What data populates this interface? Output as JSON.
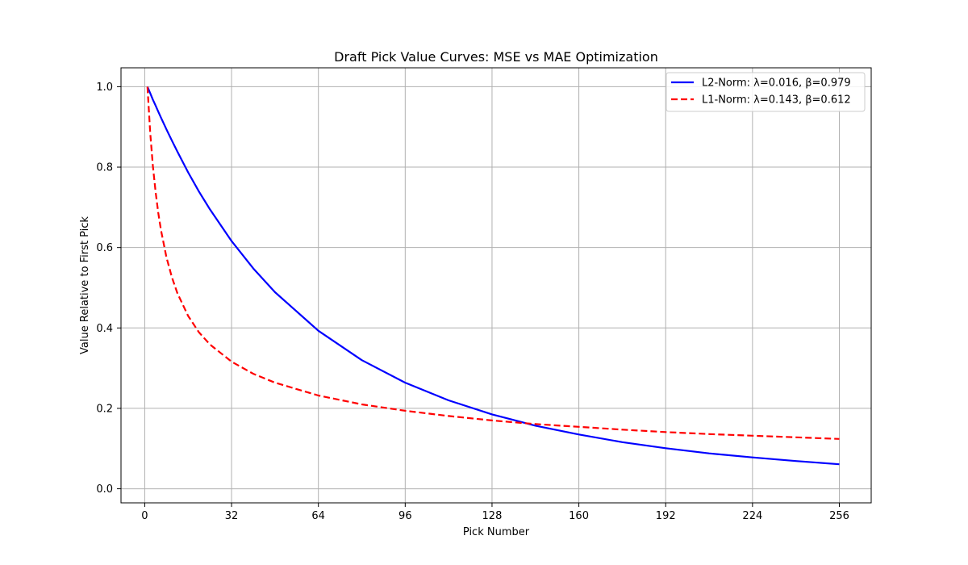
{
  "chart_data": {
    "type": "line",
    "title": "Draft Pick Value Curves: MSE vs MAE Optimization",
    "xlabel": "Pick Number",
    "ylabel": "Value Relative to First Pick",
    "xlim": [
      -8.75,
      267.75
    ],
    "ylim": [
      -0.035,
      1.047
    ],
    "xticks": [
      0,
      32,
      64,
      96,
      128,
      160,
      192,
      224,
      256
    ],
    "xtick_labels": [
      "0",
      "32",
      "64",
      "96",
      "128",
      "160",
      "192",
      "224",
      "256"
    ],
    "yticks": [
      0.0,
      0.2,
      0.4,
      0.6,
      0.8,
      1.0
    ],
    "ytick_labels": [
      "0.0",
      "0.2",
      "0.4",
      "0.6",
      "0.8",
      "1.0"
    ],
    "grid": true,
    "legend_position": "top-right",
    "x": [
      1,
      2,
      3,
      4,
      5,
      6,
      8,
      10,
      12,
      16,
      20,
      24,
      32,
      40,
      48,
      64,
      80,
      96,
      112,
      128,
      144,
      160,
      176,
      192,
      208,
      224,
      240,
      256
    ],
    "series": [
      {
        "name": "L2-Norm: λ=0.016, β=0.979",
        "color": "#0000ff",
        "style": "solid",
        "values": [
          1.0,
          0.984,
          0.968,
          0.953,
          0.938,
          0.923,
          0.894,
          0.866,
          0.839,
          0.787,
          0.739,
          0.695,
          0.616,
          0.548,
          0.489,
          0.393,
          0.32,
          0.264,
          0.22,
          0.185,
          0.157,
          0.135,
          0.116,
          0.101,
          0.088,
          0.078,
          0.069,
          0.061
        ]
      },
      {
        "name": "L1-Norm: λ=0.143, β=0.612",
        "color": "#ff0000",
        "style": "dashed",
        "values": [
          1.0,
          0.886,
          0.803,
          0.738,
          0.686,
          0.643,
          0.576,
          0.526,
          0.487,
          0.43,
          0.389,
          0.359,
          0.316,
          0.286,
          0.264,
          0.232,
          0.21,
          0.194,
          0.181,
          0.17,
          0.161,
          0.154,
          0.147,
          0.141,
          0.136,
          0.132,
          0.128,
          0.124
        ]
      }
    ]
  }
}
